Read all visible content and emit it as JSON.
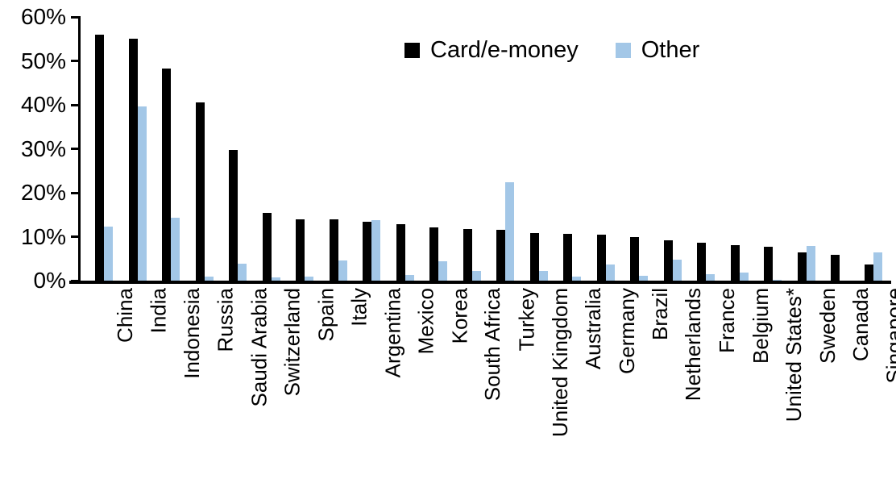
{
  "chart_data": {
    "type": "bar",
    "title": "",
    "xlabel": "",
    "ylabel": "",
    "ylim": [
      0,
      60
    ],
    "grid": false,
    "legend_position": "top-center",
    "yticks": [
      {
        "value": 60,
        "label": "60%"
      },
      {
        "value": 50,
        "label": "50%"
      },
      {
        "value": 40,
        "label": "40%"
      },
      {
        "value": 30,
        "label": "30%"
      },
      {
        "value": 20,
        "label": "20%"
      },
      {
        "value": 10,
        "label": "10%"
      },
      {
        "value": 0,
        "label": "0%"
      }
    ],
    "categories": [
      "China",
      "India",
      "Indonesia",
      "Russia",
      "Saudi Arabia",
      "Switzerland",
      "Spain",
      "Italy",
      "Argentina",
      "Mexico",
      "Korea",
      "South Africa",
      "Turkey",
      "United Kingdom",
      "Australia",
      "Germany",
      "Brazil",
      "Netherlands",
      "France",
      "Belgium",
      "United States*",
      "Sweden",
      "Canada",
      "Singapore"
    ],
    "series": [
      {
        "name": "Card/e-money",
        "color": "#000000",
        "values": [
          56,
          55,
          48.2,
          40.5,
          29.8,
          15.4,
          14,
          14,
          13.4,
          12.9,
          12.2,
          11.7,
          11.5,
          10.8,
          10.7,
          10.5,
          10,
          9.2,
          8.6,
          8,
          7.8,
          6.4,
          5.8,
          3.7
        ]
      },
      {
        "name": "Other",
        "color": "#A3C7E7",
        "values": [
          12.3,
          39.7,
          14.3,
          1,
          3.8,
          0.7,
          0.9,
          4.5,
          13.8,
          1.3,
          4.4,
          2.2,
          22.4,
          2.2,
          0.9,
          3.7,
          1.1,
          4.7,
          1.5,
          1.9,
          0.2,
          7.9,
          0,
          6.5
        ]
      }
    ]
  }
}
